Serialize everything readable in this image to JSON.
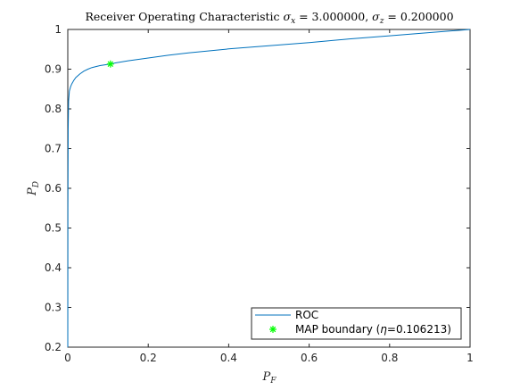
{
  "chart_data": {
    "type": "line",
    "title": "Receiver Operating Characteristic σx = 3.000000, σz = 0.200000",
    "title_parts": {
      "prefix": "Receiver Operating Characteristic ",
      "sx_symbol": "σ",
      "sx_sub": "x",
      "sx_value": " = 3.000000, ",
      "sz_symbol": "σ",
      "sz_sub": "z",
      "sz_value": " = 0.200000"
    },
    "xlabel": "PF",
    "xlabel_parts": {
      "main": "P",
      "sub": "F"
    },
    "ylabel": "PD",
    "ylabel_parts": {
      "main": "P",
      "sub": "D"
    },
    "xlim": [
      0,
      1
    ],
    "ylim": [
      0.2,
      1
    ],
    "xticks": [
      "0",
      "0.2",
      "0.4",
      "0.6",
      "0.8",
      "1"
    ],
    "xtick_values": [
      0,
      0.2,
      0.4,
      0.6,
      0.8,
      1
    ],
    "yticks": [
      "0.2",
      "0.3",
      "0.4",
      "0.5",
      "0.6",
      "0.7",
      "0.8",
      "0.9",
      "1"
    ],
    "ytick_values": [
      0.2,
      0.3,
      0.4,
      0.5,
      0.6,
      0.7,
      0.8,
      0.9,
      1
    ],
    "grid": false,
    "legend_position": "bottom-right",
    "series": [
      {
        "name": "ROC",
        "color": "#0072bd",
        "x": [
          0,
          0.0003,
          0.001,
          0.002,
          0.004,
          0.007,
          0.01,
          0.015,
          0.02,
          0.03,
          0.04,
          0.05,
          0.06,
          0.08,
          0.1,
          0.106,
          0.12,
          0.15,
          0.2,
          0.25,
          0.3,
          0.4,
          0.5,
          0.6,
          0.7,
          0.8,
          0.9,
          1
        ],
        "y": [
          0.2,
          0.55,
          0.75,
          0.82,
          0.845,
          0.856,
          0.863,
          0.872,
          0.879,
          0.888,
          0.895,
          0.9,
          0.904,
          0.909,
          0.912,
          0.913,
          0.916,
          0.921,
          0.928,
          0.935,
          0.941,
          0.951,
          0.959,
          0.967,
          0.976,
          0.984,
          0.992,
          1
        ]
      }
    ],
    "marker": {
      "name": "MAP boundary (η=0.106213)",
      "legend_parts": {
        "prefix": "MAP boundary (",
        "eta": "η",
        "suffix": "=0.106213)"
      },
      "color": "#00ff00",
      "x": 0.106,
      "y": 0.913
    }
  }
}
